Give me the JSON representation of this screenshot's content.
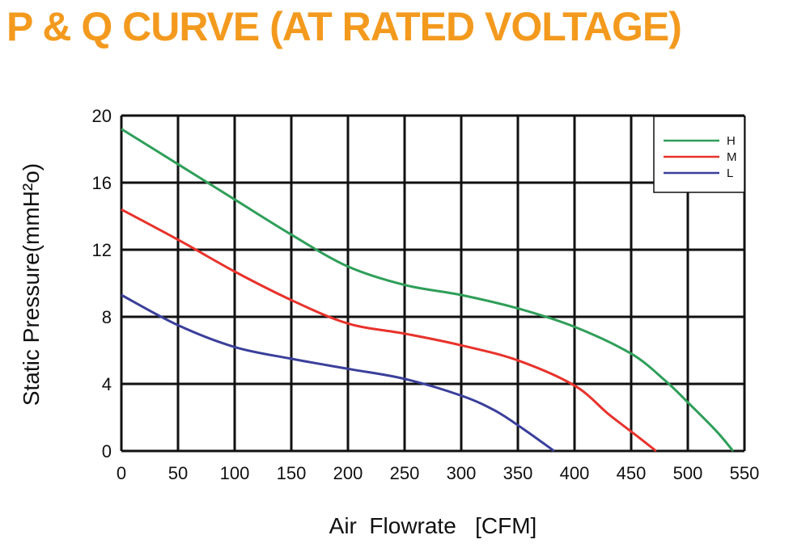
{
  "chart_data": {
    "type": "line",
    "title": "P & Q CURVE (AT RATED VOLTAGE)",
    "xlabel": "Air  Flowrate   [CFM]",
    "ylabel": "Static Pressure(mmH²o)",
    "xlim": [
      0,
      550
    ],
    "ylim": [
      0,
      20
    ],
    "xticks": [
      0,
      50,
      100,
      150,
      200,
      250,
      300,
      350,
      400,
      450,
      500,
      550
    ],
    "yticks": [
      0,
      4,
      8,
      12,
      16,
      20
    ],
    "grid": true,
    "legend_position": "top-right",
    "series": [
      {
        "name": "H",
        "color": "#2f9e59",
        "x": [
          0,
          50,
          100,
          150,
          200,
          250,
          300,
          350,
          400,
          450,
          480,
          500,
          525,
          540
        ],
        "y": [
          19.2,
          17.1,
          15.0,
          12.9,
          11.0,
          9.9,
          9.3,
          8.5,
          7.4,
          5.8,
          4.2,
          2.9,
          1.2,
          0
        ]
      },
      {
        "name": "M",
        "color": "#e8322b",
        "x": [
          0,
          50,
          100,
          150,
          200,
          250,
          300,
          350,
          400,
          430,
          455,
          472
        ],
        "y": [
          14.4,
          12.6,
          10.7,
          9.0,
          7.6,
          7.0,
          6.3,
          5.4,
          3.9,
          2.2,
          0.9,
          0
        ]
      },
      {
        "name": "L",
        "color": "#3a3f9b",
        "x": [
          0,
          50,
          100,
          150,
          200,
          250,
          300,
          330,
          355,
          382
        ],
        "y": [
          9.3,
          7.5,
          6.2,
          5.5,
          4.9,
          4.3,
          3.3,
          2.4,
          1.3,
          0
        ]
      }
    ]
  }
}
